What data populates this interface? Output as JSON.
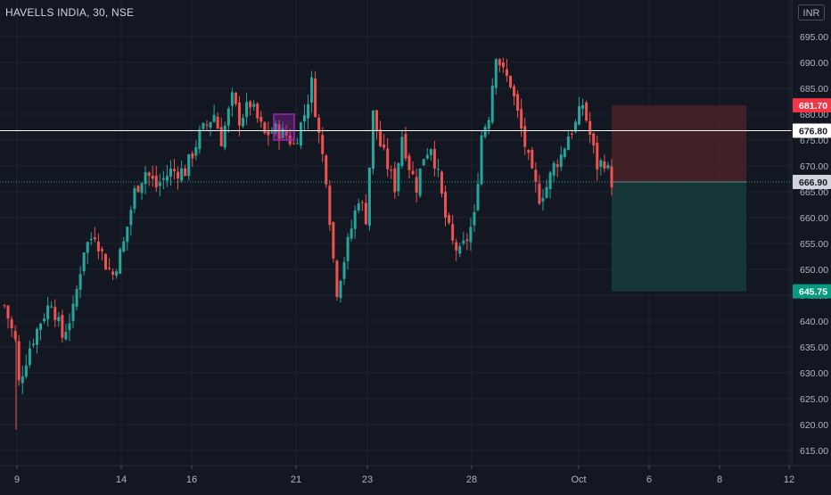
{
  "header": {
    "symbol": "HAVELLS INDIA, 30, NSE",
    "currency": "INR"
  },
  "colors": {
    "background": "#131722",
    "grid": "#1f2330",
    "up": "#26a69a",
    "down": "#ef5350",
    "axis_text": "#b2b5be",
    "level_line": "#ffffff",
    "stop_zone": "#4a2327",
    "target_zone": "#173a3a",
    "highlight": "#9c27b0"
  },
  "chart_data": {
    "type": "candlestick",
    "symbol": "HAVELLS INDIA",
    "interval": "30",
    "exchange": "NSE",
    "ylim": [
      610,
      697
    ],
    "y_ticks": [
      615,
      620,
      625,
      630,
      635,
      640,
      645,
      650,
      655,
      660,
      665,
      670,
      675,
      680,
      685,
      690,
      695
    ],
    "y_tick_labels": [
      "615.00",
      "620.00",
      "625.00",
      "630.00",
      "635.00",
      "640.00",
      "645.00",
      "650.00",
      "655.00",
      "660.00",
      "665.00",
      "670.00",
      "675.00",
      "680.00",
      "685.00",
      "690.00",
      "695.00"
    ],
    "x_ticks": [
      "9",
      "14",
      "16",
      "19",
      "21",
      "23",
      "28",
      "Oct",
      "6",
      "8",
      "12"
    ],
    "grid": true,
    "price_tags": [
      {
        "value": 681.7,
        "label": "681.70",
        "role": "stop-loss"
      },
      {
        "value": 676.8,
        "label": "676.80",
        "role": "horizontal-level"
      },
      {
        "value": 666.9,
        "label": "666.90",
        "role": "last-price"
      },
      {
        "value": 645.75,
        "label": "645.75",
        "role": "target"
      }
    ],
    "position": {
      "side": "short",
      "entry": 666.9,
      "stop": 681.7,
      "target": 645.75
    },
    "price_path": [
      {
        "i": 0,
        "p": 643
      },
      {
        "i": 3,
        "p": 636
      },
      {
        "i": 4,
        "p": 628
      },
      {
        "i": 7,
        "p": 635
      },
      {
        "i": 10,
        "p": 640
      },
      {
        "i": 13,
        "p": 644
      },
      {
        "i": 16,
        "p": 637
      },
      {
        "i": 19,
        "p": 642
      },
      {
        "i": 22,
        "p": 654
      },
      {
        "i": 25,
        "p": 657
      },
      {
        "i": 28,
        "p": 651
      },
      {
        "i": 30,
        "p": 649
      },
      {
        "i": 33,
        "p": 655
      },
      {
        "i": 36,
        "p": 665
      },
      {
        "i": 39,
        "p": 669
      },
      {
        "i": 42,
        "p": 666
      },
      {
        "i": 46,
        "p": 669
      },
      {
        "i": 50,
        "p": 669
      },
      {
        "i": 54,
        "p": 676
      },
      {
        "i": 58,
        "p": 680
      },
      {
        "i": 60,
        "p": 675
      },
      {
        "i": 63,
        "p": 683
      },
      {
        "i": 65,
        "p": 679
      },
      {
        "i": 68,
        "p": 682
      },
      {
        "i": 70,
        "p": 679
      },
      {
        "i": 72,
        "p": 676
      },
      {
        "i": 75,
        "p": 677
      },
      {
        "i": 78,
        "p": 676
      },
      {
        "i": 80,
        "p": 674
      },
      {
        "i": 83,
        "p": 680
      },
      {
        "i": 85,
        "p": 686
      },
      {
        "i": 87,
        "p": 676
      },
      {
        "i": 89,
        "p": 668
      },
      {
        "i": 91,
        "p": 652
      },
      {
        "i": 92,
        "p": 646
      },
      {
        "i": 94,
        "p": 652
      },
      {
        "i": 96,
        "p": 658
      },
      {
        "i": 98,
        "p": 664
      },
      {
        "i": 100,
        "p": 660
      },
      {
        "i": 102,
        "p": 680
      },
      {
        "i": 104,
        "p": 674
      },
      {
        "i": 106,
        "p": 670
      },
      {
        "i": 108,
        "p": 666
      },
      {
        "i": 110,
        "p": 676
      },
      {
        "i": 112,
        "p": 670
      },
      {
        "i": 114,
        "p": 666
      },
      {
        "i": 116,
        "p": 672
      },
      {
        "i": 118,
        "p": 674
      },
      {
        "i": 120,
        "p": 668
      },
      {
        "i": 122,
        "p": 660
      },
      {
        "i": 124,
        "p": 655
      },
      {
        "i": 126,
        "p": 653
      },
      {
        "i": 128,
        "p": 656
      },
      {
        "i": 130,
        "p": 660
      },
      {
        "i": 132,
        "p": 676
      },
      {
        "i": 134,
        "p": 680
      },
      {
        "i": 136,
        "p": 692
      },
      {
        "i": 138,
        "p": 688
      },
      {
        "i": 140,
        "p": 686
      },
      {
        "i": 142,
        "p": 680
      },
      {
        "i": 144,
        "p": 674
      },
      {
        "i": 146,
        "p": 668
      },
      {
        "i": 148,
        "p": 664
      },
      {
        "i": 150,
        "p": 666
      },
      {
        "i": 152,
        "p": 670
      },
      {
        "i": 154,
        "p": 672
      },
      {
        "i": 156,
        "p": 676
      },
      {
        "i": 158,
        "p": 678
      },
      {
        "i": 160,
        "p": 682
      },
      {
        "i": 162,
        "p": 676
      },
      {
        "i": 164,
        "p": 670
      },
      {
        "i": 166,
        "p": 671
      },
      {
        "i": 168,
        "p": 667
      }
    ]
  }
}
